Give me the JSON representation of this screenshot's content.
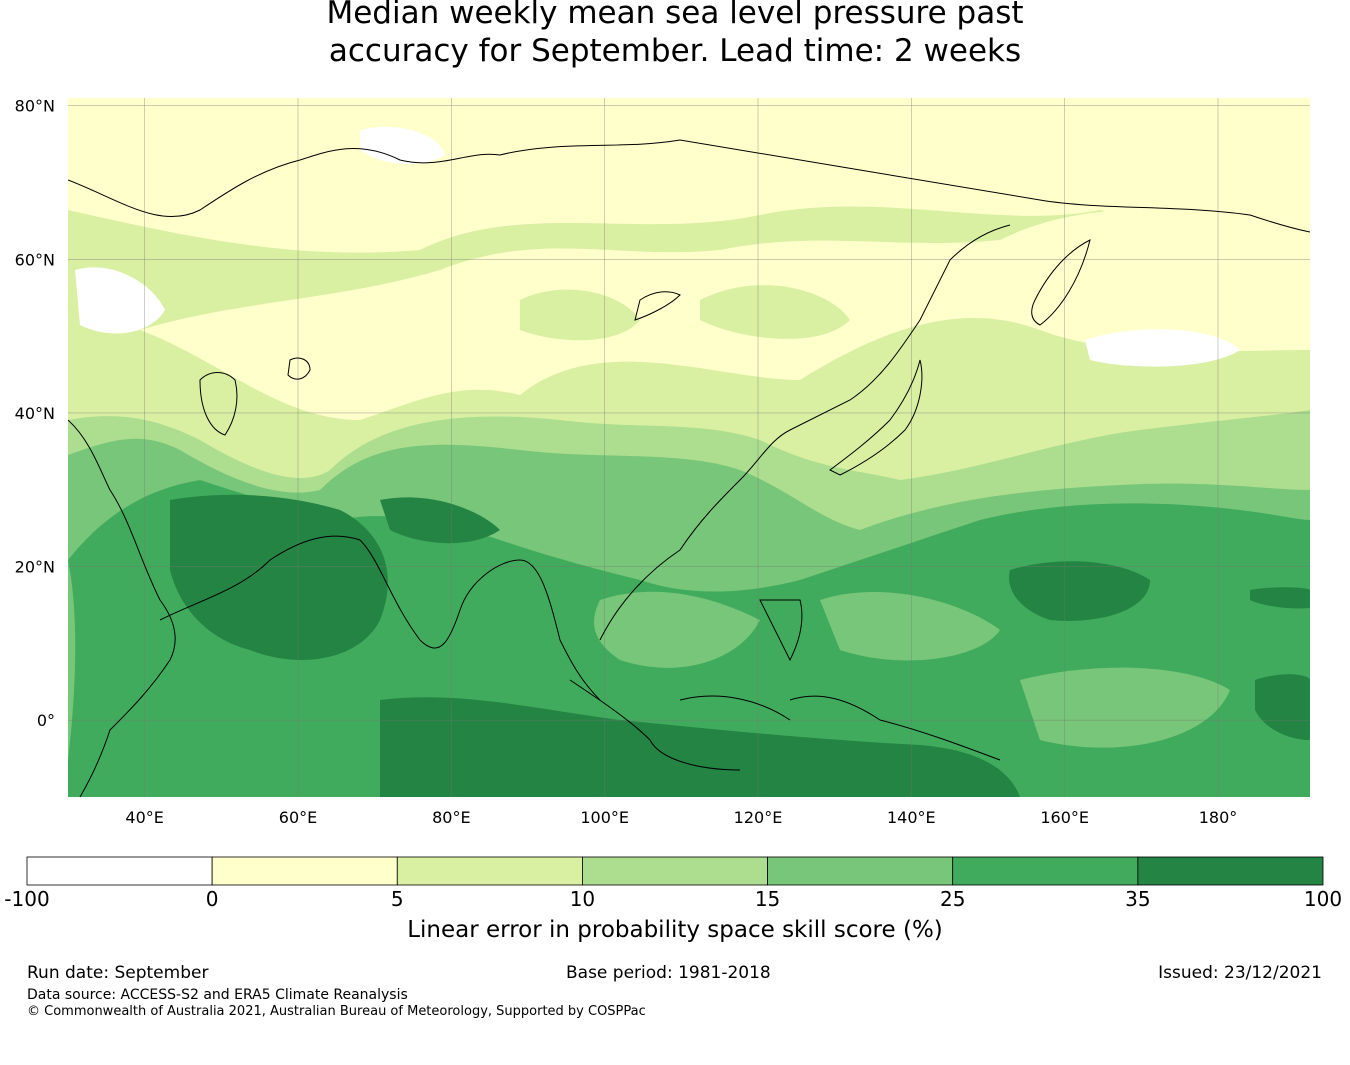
{
  "title": {
    "line1": "Median weekly mean sea level pressure past",
    "line2": "accuracy for September. Lead time: 2 weeks"
  },
  "map": {
    "lat_ticks": [
      "80°N",
      "60°N",
      "40°N",
      "20°N",
      "0°"
    ],
    "lon_ticks": [
      "40°E",
      "60°E",
      "80°E",
      "100°E",
      "120°E",
      "140°E",
      "160°E",
      "180°"
    ],
    "lat_range": [
      -10,
      81
    ],
    "lon_range": [
      30,
      192
    ]
  },
  "colorbar": {
    "title": "Linear error in probability space skill score (%)",
    "bounds": [
      "-100",
      "0",
      "5",
      "10",
      "15",
      "25",
      "35",
      "100"
    ],
    "colors": [
      "#ffffff",
      "#ffffcc",
      "#d9f0a3",
      "#addd8e",
      "#78c679",
      "#41ab5d",
      "#238443"
    ]
  },
  "footer": {
    "run_date": "Run date: September",
    "base_period": "Base period: 1981-2018",
    "issued": "Issued: 23/12/2021",
    "data_source": "Data source: ACCESS-S2 and ERA5 Climate Reanalysis",
    "copyright": "© Commonwealth of Australia 2021, Australian Bureau of Meteorology, Supported by COSPPac"
  }
}
